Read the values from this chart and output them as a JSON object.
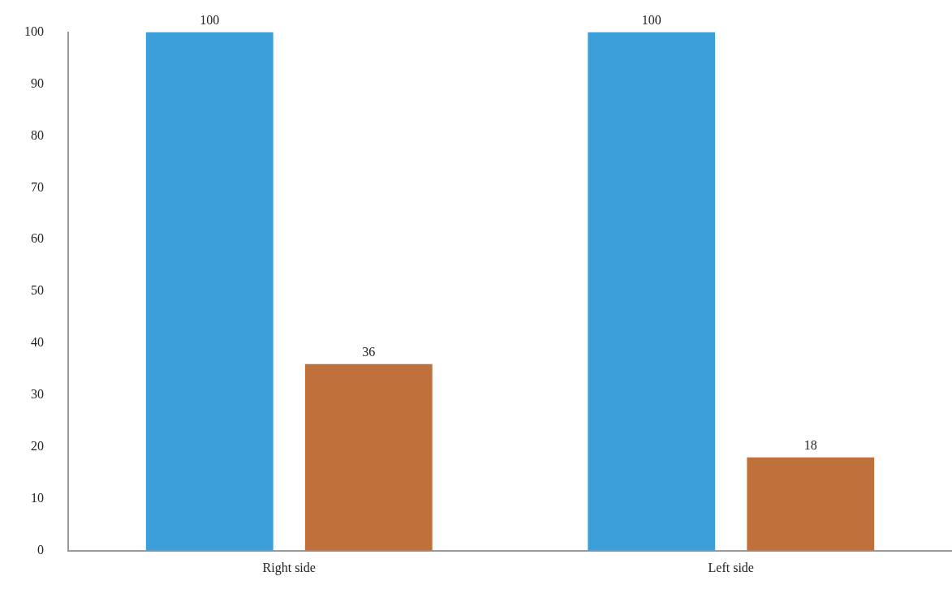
{
  "chart_data": {
    "type": "bar",
    "categories": [
      "Right side",
      "Left side"
    ],
    "series": [
      {
        "color": "#3d9fd9",
        "values": [
          100,
          100
        ]
      },
      {
        "color": "#c0703a",
        "values": [
          36,
          18
        ]
      }
    ],
    "ylim": [
      0,
      100
    ],
    "yticks": [
      0,
      10,
      20,
      30,
      40,
      50,
      60,
      70,
      80,
      90,
      100
    ],
    "grid": false,
    "legend": false,
    "data_labels": true
  }
}
